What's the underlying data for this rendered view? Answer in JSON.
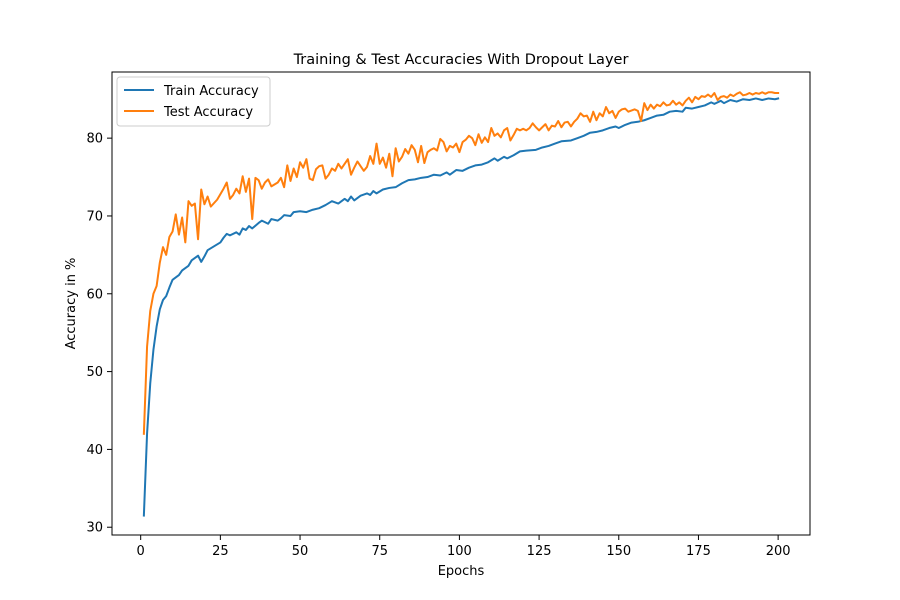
{
  "chart_data": {
    "type": "line",
    "title": "Training & Test Accuracies With Dropout Layer",
    "xlabel": "Epochs",
    "ylabel": "Accuracy in %",
    "xlim": [
      -9,
      210
    ],
    "ylim": [
      29,
      88.5
    ],
    "xticks": [
      0,
      25,
      50,
      75,
      100,
      125,
      150,
      175,
      200
    ],
    "yticks": [
      30,
      40,
      50,
      60,
      70,
      80
    ],
    "grid": false,
    "legend_position": "upper-left",
    "series": [
      {
        "name": "Train Accuracy",
        "color": "#1f77b4",
        "points": [
          [
            1,
            31.5
          ],
          [
            2,
            42.0
          ],
          [
            3,
            48.5
          ],
          [
            4,
            52.8
          ],
          [
            5,
            55.8
          ],
          [
            6,
            58.0
          ],
          [
            7,
            59.2
          ],
          [
            8,
            59.7
          ],
          [
            9,
            60.8
          ],
          [
            10,
            61.8
          ],
          [
            12,
            62.4
          ],
          [
            13,
            63.0
          ],
          [
            15,
            63.6
          ],
          [
            16,
            64.3
          ],
          [
            18,
            64.9
          ],
          [
            19,
            64.1
          ],
          [
            20,
            64.8
          ],
          [
            21,
            65.6
          ],
          [
            23,
            66.1
          ],
          [
            25,
            66.6
          ],
          [
            26,
            67.2
          ],
          [
            27,
            67.7
          ],
          [
            28,
            67.5
          ],
          [
            30,
            67.9
          ],
          [
            31,
            67.6
          ],
          [
            32,
            68.4
          ],
          [
            33,
            68.2
          ],
          [
            34,
            68.7
          ],
          [
            35,
            68.4
          ],
          [
            37,
            69.1
          ],
          [
            38,
            69.4
          ],
          [
            40,
            69.0
          ],
          [
            41,
            69.6
          ],
          [
            43,
            69.4
          ],
          [
            44,
            69.7
          ],
          [
            45,
            70.1
          ],
          [
            47,
            70.0
          ],
          [
            48,
            70.5
          ],
          [
            50,
            70.6
          ],
          [
            52,
            70.5
          ],
          [
            54,
            70.8
          ],
          [
            56,
            71.0
          ],
          [
            58,
            71.4
          ],
          [
            60,
            71.9
          ],
          [
            62,
            71.6
          ],
          [
            64,
            72.2
          ],
          [
            65,
            71.9
          ],
          [
            66,
            72.5
          ],
          [
            67,
            72.0
          ],
          [
            69,
            72.6
          ],
          [
            71,
            72.9
          ],
          [
            72,
            72.7
          ],
          [
            73,
            73.2
          ],
          [
            74,
            72.9
          ],
          [
            76,
            73.4
          ],
          [
            78,
            73.6
          ],
          [
            80,
            73.7
          ],
          [
            82,
            74.2
          ],
          [
            84,
            74.6
          ],
          [
            86,
            74.7
          ],
          [
            88,
            74.9
          ],
          [
            90,
            75.0
          ],
          [
            92,
            75.3
          ],
          [
            94,
            75.2
          ],
          [
            96,
            75.6
          ],
          [
            97,
            75.3
          ],
          [
            99,
            75.9
          ],
          [
            101,
            75.8
          ],
          [
            103,
            76.2
          ],
          [
            105,
            76.5
          ],
          [
            107,
            76.6
          ],
          [
            109,
            76.9
          ],
          [
            111,
            77.4
          ],
          [
            112,
            77.1
          ],
          [
            114,
            77.6
          ],
          [
            115,
            77.4
          ],
          [
            117,
            77.8
          ],
          [
            119,
            78.3
          ],
          [
            121,
            78.4
          ],
          [
            124,
            78.5
          ],
          [
            126,
            78.8
          ],
          [
            128,
            79.0
          ],
          [
            130,
            79.3
          ],
          [
            132,
            79.6
          ],
          [
            135,
            79.7
          ],
          [
            137,
            80.0
          ],
          [
            139,
            80.3
          ],
          [
            141,
            80.7
          ],
          [
            143,
            80.8
          ],
          [
            145,
            81.0
          ],
          [
            147,
            81.3
          ],
          [
            149,
            81.5
          ],
          [
            150,
            81.3
          ],
          [
            152,
            81.7
          ],
          [
            154,
            82.0
          ],
          [
            156,
            82.1
          ],
          [
            158,
            82.3
          ],
          [
            160,
            82.6
          ],
          [
            162,
            82.9
          ],
          [
            164,
            83.0
          ],
          [
            166,
            83.4
          ],
          [
            168,
            83.5
          ],
          [
            170,
            83.4
          ],
          [
            171,
            83.9
          ],
          [
            173,
            83.8
          ],
          [
            175,
            84.0
          ],
          [
            177,
            84.2
          ],
          [
            179,
            84.6
          ],
          [
            180,
            84.4
          ],
          [
            182,
            84.8
          ],
          [
            183,
            84.5
          ],
          [
            185,
            84.9
          ],
          [
            187,
            84.7
          ],
          [
            189,
            85.0
          ],
          [
            191,
            84.9
          ],
          [
            193,
            85.1
          ],
          [
            195,
            84.9
          ],
          [
            197,
            85.1
          ],
          [
            199,
            85.0
          ],
          [
            200,
            85.1
          ]
        ]
      },
      {
        "name": "Test Accuracy",
        "color": "#ff7f0e",
        "points": [
          [
            1,
            42.0
          ],
          [
            2,
            53.2
          ],
          [
            3,
            57.8
          ],
          [
            4,
            60.0
          ],
          [
            5,
            61.0
          ],
          [
            6,
            64.0
          ],
          [
            7,
            66.0
          ],
          [
            8,
            65.0
          ],
          [
            9,
            67.3
          ],
          [
            10,
            68.0
          ],
          [
            11,
            70.2
          ],
          [
            12,
            67.6
          ],
          [
            13,
            69.8
          ],
          [
            14,
            66.6
          ],
          [
            15,
            71.9
          ],
          [
            16,
            71.3
          ],
          [
            17,
            71.6
          ],
          [
            18,
            67.0
          ],
          [
            19,
            73.4
          ],
          [
            20,
            71.5
          ],
          [
            21,
            72.5
          ],
          [
            22,
            71.2
          ],
          [
            24,
            72.1
          ],
          [
            26,
            73.5
          ],
          [
            27,
            74.3
          ],
          [
            28,
            72.2
          ],
          [
            29,
            72.7
          ],
          [
            30,
            73.5
          ],
          [
            31,
            72.9
          ],
          [
            32,
            75.1
          ],
          [
            33,
            73.1
          ],
          [
            34,
            74.8
          ],
          [
            35,
            69.6
          ],
          [
            36,
            74.9
          ],
          [
            37,
            74.6
          ],
          [
            38,
            73.5
          ],
          [
            39,
            74.3
          ],
          [
            40,
            74.7
          ],
          [
            41,
            73.8
          ],
          [
            43,
            74.3
          ],
          [
            44,
            74.9
          ],
          [
            45,
            73.7
          ],
          [
            46,
            76.5
          ],
          [
            47,
            74.5
          ],
          [
            48,
            76.1
          ],
          [
            49,
            75.0
          ],
          [
            50,
            76.9
          ],
          [
            51,
            76.2
          ],
          [
            52,
            77.3
          ],
          [
            53,
            74.8
          ],
          [
            54,
            74.6
          ],
          [
            55,
            76.0
          ],
          [
            56,
            76.4
          ],
          [
            57,
            76.5
          ],
          [
            58,
            74.8
          ],
          [
            59,
            75.3
          ],
          [
            60,
            76.1
          ],
          [
            61,
            75.8
          ],
          [
            62,
            76.7
          ],
          [
            63,
            76.1
          ],
          [
            65,
            77.3
          ],
          [
            66,
            75.3
          ],
          [
            67,
            76.2
          ],
          [
            68,
            77.0
          ],
          [
            69,
            76.4
          ],
          [
            70,
            75.8
          ],
          [
            71,
            76.3
          ],
          [
            72,
            77.7
          ],
          [
            73,
            76.7
          ],
          [
            74,
            79.3
          ],
          [
            75,
            76.7
          ],
          [
            76,
            77.5
          ],
          [
            77,
            76.2
          ],
          [
            78,
            78.0
          ],
          [
            79,
            75.1
          ],
          [
            80,
            78.7
          ],
          [
            81,
            77.0
          ],
          [
            82,
            77.6
          ],
          [
            83,
            78.6
          ],
          [
            84,
            78.0
          ],
          [
            85,
            79.1
          ],
          [
            86,
            78.5
          ],
          [
            87,
            76.9
          ],
          [
            88,
            79.0
          ],
          [
            89,
            76.8
          ],
          [
            90,
            78.2
          ],
          [
            91,
            78.5
          ],
          [
            92,
            78.7
          ],
          [
            93,
            78.4
          ],
          [
            94,
            79.9
          ],
          [
            95,
            79.5
          ],
          [
            96,
            78.3
          ],
          [
            97,
            79.0
          ],
          [
            98,
            78.8
          ],
          [
            99,
            79.3
          ],
          [
            100,
            78.2
          ],
          [
            101,
            79.5
          ],
          [
            102,
            79.8
          ],
          [
            103,
            80.3
          ],
          [
            104,
            80.0
          ],
          [
            105,
            79.1
          ],
          [
            106,
            80.5
          ],
          [
            107,
            79.4
          ],
          [
            108,
            80.1
          ],
          [
            109,
            79.5
          ],
          [
            110,
            81.3
          ],
          [
            111,
            80.3
          ],
          [
            112,
            80.6
          ],
          [
            113,
            80.1
          ],
          [
            114,
            81.0
          ],
          [
            115,
            81.3
          ],
          [
            116,
            79.7
          ],
          [
            117,
            80.4
          ],
          [
            118,
            81.2
          ],
          [
            119,
            81.0
          ],
          [
            120,
            81.2
          ],
          [
            121,
            81.0
          ],
          [
            122,
            81.3
          ],
          [
            123,
            81.9
          ],
          [
            124,
            81.4
          ],
          [
            125,
            81.0
          ],
          [
            126,
            81.4
          ],
          [
            127,
            81.8
          ],
          [
            128,
            81.0
          ],
          [
            129,
            81.6
          ],
          [
            130,
            81.5
          ],
          [
            131,
            82.2
          ],
          [
            132,
            81.4
          ],
          [
            133,
            82.0
          ],
          [
            134,
            82.1
          ],
          [
            135,
            81.5
          ],
          [
            136,
            82.1
          ],
          [
            137,
            82.5
          ],
          [
            138,
            83.2
          ],
          [
            139,
            82.8
          ],
          [
            140,
            82.9
          ],
          [
            141,
            82.1
          ],
          [
            142,
            83.4
          ],
          [
            143,
            82.3
          ],
          [
            144,
            83.2
          ],
          [
            145,
            82.8
          ],
          [
            146,
            84.0
          ],
          [
            147,
            83.2
          ],
          [
            148,
            83.5
          ],
          [
            149,
            82.6
          ],
          [
            150,
            83.4
          ],
          [
            151,
            83.7
          ],
          [
            152,
            83.8
          ],
          [
            153,
            83.4
          ],
          [
            155,
            83.7
          ],
          [
            156,
            83.5
          ],
          [
            157,
            82.2
          ],
          [
            158,
            84.5
          ],
          [
            159,
            83.6
          ],
          [
            160,
            84.3
          ],
          [
            161,
            83.8
          ],
          [
            162,
            84.3
          ],
          [
            163,
            84.1
          ],
          [
            164,
            84.6
          ],
          [
            165,
            84.2
          ],
          [
            166,
            84.3
          ],
          [
            167,
            84.8
          ],
          [
            168,
            84.3
          ],
          [
            169,
            84.6
          ],
          [
            170,
            84.2
          ],
          [
            171,
            84.8
          ],
          [
            172,
            85.2
          ],
          [
            173,
            84.6
          ],
          [
            174,
            85.3
          ],
          [
            175,
            85.0
          ],
          [
            176,
            85.4
          ],
          [
            177,
            85.3
          ],
          [
            178,
            85.6
          ],
          [
            179,
            85.3
          ],
          [
            180,
            85.8
          ],
          [
            181,
            84.9
          ],
          [
            182,
            85.3
          ],
          [
            183,
            85.4
          ],
          [
            184,
            85.2
          ],
          [
            185,
            85.6
          ],
          [
            186,
            85.4
          ],
          [
            187,
            85.7
          ],
          [
            188,
            85.9
          ],
          [
            189,
            85.5
          ],
          [
            190,
            85.6
          ],
          [
            191,
            85.8
          ],
          [
            192,
            85.6
          ],
          [
            193,
            85.8
          ],
          [
            194,
            85.7
          ],
          [
            195,
            85.9
          ],
          [
            196,
            85.7
          ],
          [
            197,
            85.9
          ],
          [
            198,
            85.9
          ],
          [
            199,
            85.8
          ],
          [
            200,
            85.8
          ]
        ]
      }
    ]
  }
}
